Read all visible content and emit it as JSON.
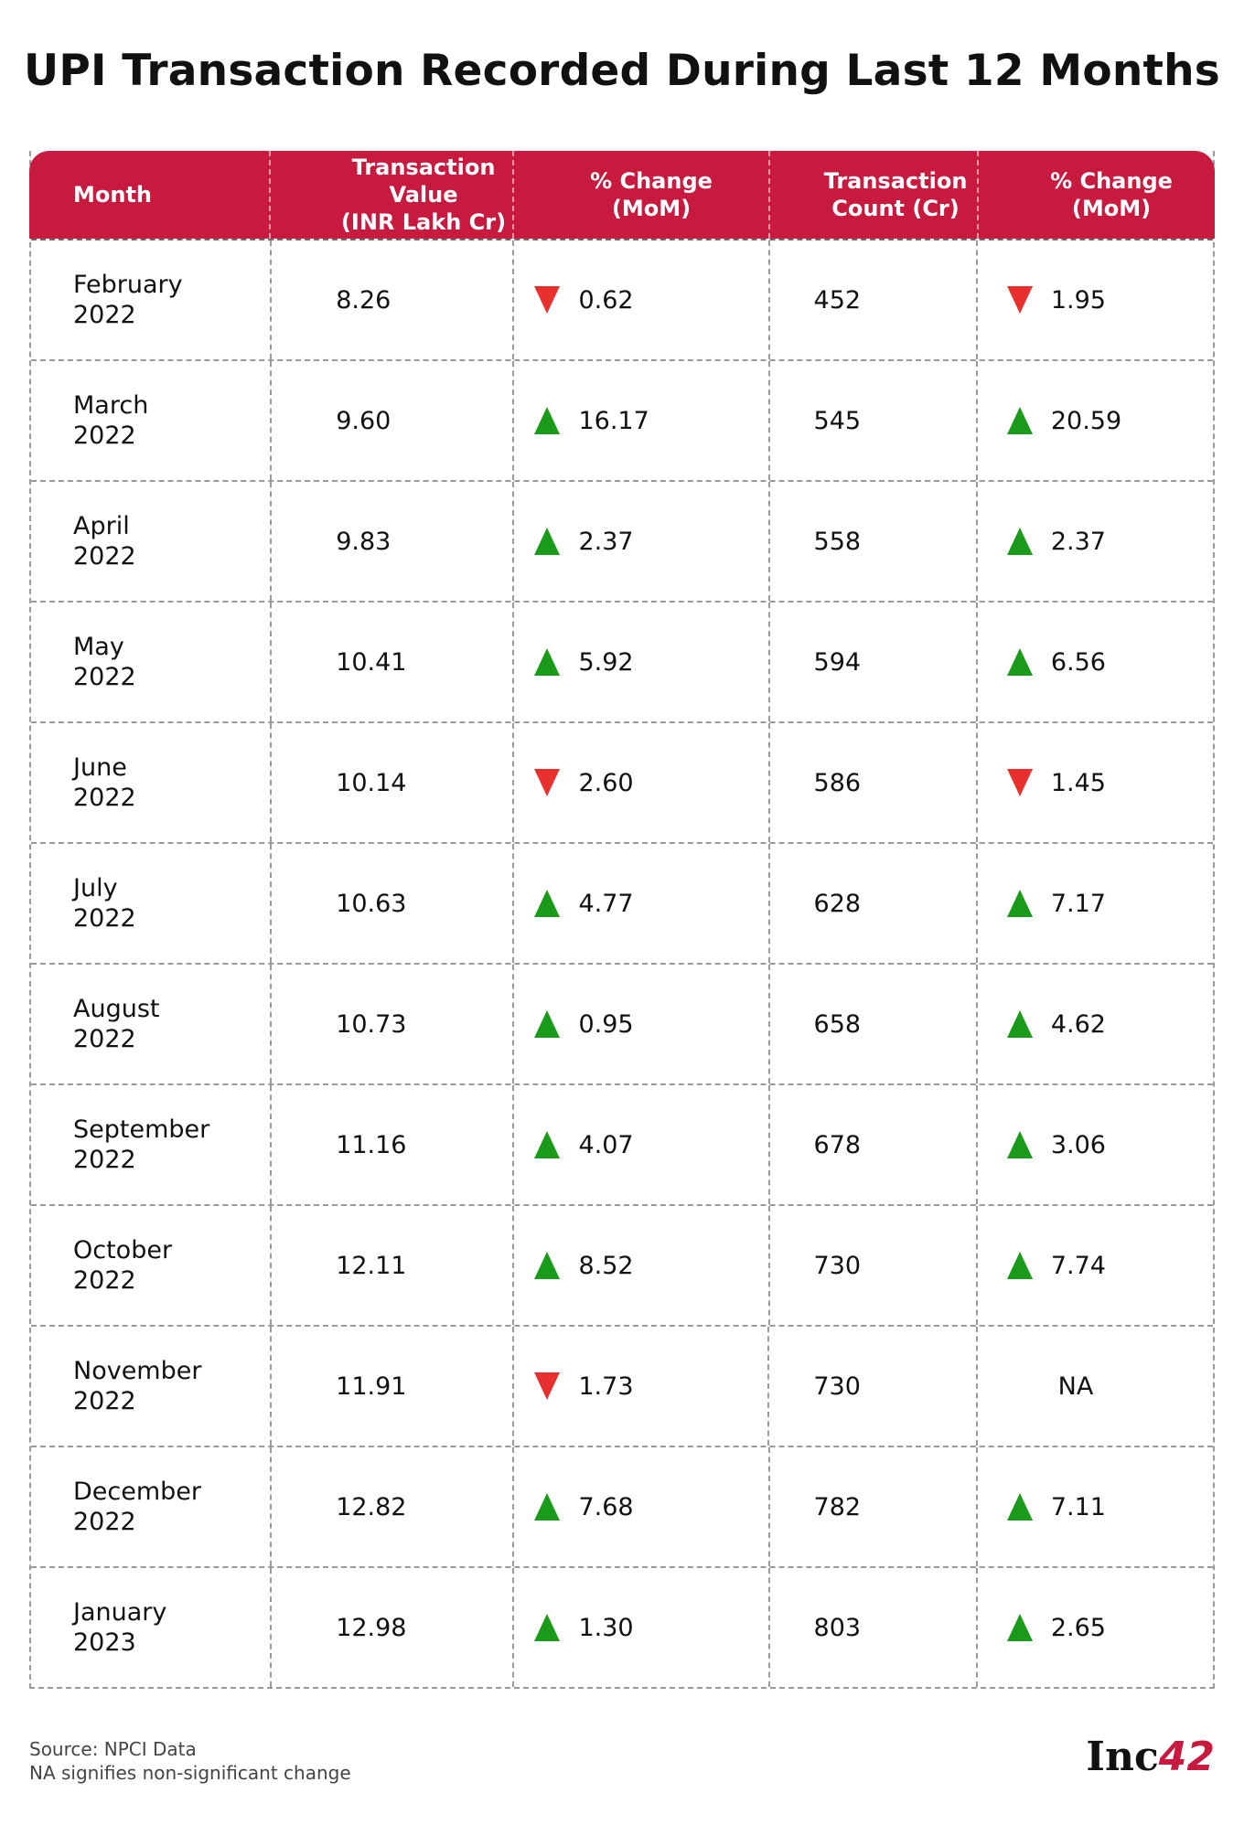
{
  "title": "UPI Transaction Recorded During Last 12 Months",
  "headers": {
    "month": "Month",
    "value": "Transaction Value\n(INR Lakh Cr)",
    "value_change": "% Change\n(MoM)",
    "count": "Transaction\nCount (Cr)",
    "count_change": "% Change\n(MoM)"
  },
  "colors": {
    "header_bg": "#c8193f",
    "up": "#1a9a1a",
    "down": "#e8312f"
  },
  "chart_data": {
    "type": "table",
    "title": "UPI Transaction Recorded During Last 12 Months",
    "columns": [
      "Month",
      "Transaction Value (INR Lakh Cr)",
      "% Change (MoM)",
      "Transaction Count (Cr)",
      "% Change (MoM)"
    ],
    "rows": [
      {
        "month": "February",
        "year": "2022",
        "value": "8.26",
        "value_change": "0.62",
        "value_dir": "down",
        "count": "452",
        "count_change": "1.95",
        "count_dir": "down"
      },
      {
        "month": "March",
        "year": "2022",
        "value": "9.60",
        "value_change": "16.17",
        "value_dir": "up",
        "count": "545",
        "count_change": "20.59",
        "count_dir": "up"
      },
      {
        "month": "April",
        "year": "2022",
        "value": "9.83",
        "value_change": "2.37",
        "value_dir": "up",
        "count": "558",
        "count_change": "2.37",
        "count_dir": "up"
      },
      {
        "month": "May",
        "year": "2022",
        "value": "10.41",
        "value_change": "5.92",
        "value_dir": "up",
        "count": "594",
        "count_change": "6.56",
        "count_dir": "up"
      },
      {
        "month": "June",
        "year": "2022",
        "value": "10.14",
        "value_change": "2.60",
        "value_dir": "down",
        "count": "586",
        "count_change": "1.45",
        "count_dir": "down"
      },
      {
        "month": "July",
        "year": "2022",
        "value": "10.63",
        "value_change": "4.77",
        "value_dir": "up",
        "count": "628",
        "count_change": "7.17",
        "count_dir": "up"
      },
      {
        "month": "August",
        "year": "2022",
        "value": "10.73",
        "value_change": "0.95",
        "value_dir": "up",
        "count": "658",
        "count_change": "4.62",
        "count_dir": "up"
      },
      {
        "month": "September",
        "year": "2022",
        "value": "11.16",
        "value_change": "4.07",
        "value_dir": "up",
        "count": "678",
        "count_change": "3.06",
        "count_dir": "up"
      },
      {
        "month": "October",
        "year": "2022",
        "value": "12.11",
        "value_change": "8.52",
        "value_dir": "up",
        "count": "730",
        "count_change": "7.74",
        "count_dir": "up"
      },
      {
        "month": "November",
        "year": "2022",
        "value": "11.91",
        "value_change": "1.73",
        "value_dir": "down",
        "count": "730",
        "count_change": "NA",
        "count_dir": "none"
      },
      {
        "month": "December",
        "year": "2022",
        "value": "12.82",
        "value_change": "7.68",
        "value_dir": "up",
        "count": "782",
        "count_change": "7.11",
        "count_dir": "up"
      },
      {
        "month": "January",
        "year": "2023",
        "value": "12.98",
        "value_change": "1.30",
        "value_dir": "up",
        "count": "803",
        "count_change": "2.65",
        "count_dir": "up"
      }
    ]
  },
  "footer": {
    "source": "Source: NPCI Data",
    "note": "NA signifies non-significant change"
  },
  "logo": {
    "text": "Inc",
    "number": "42"
  }
}
